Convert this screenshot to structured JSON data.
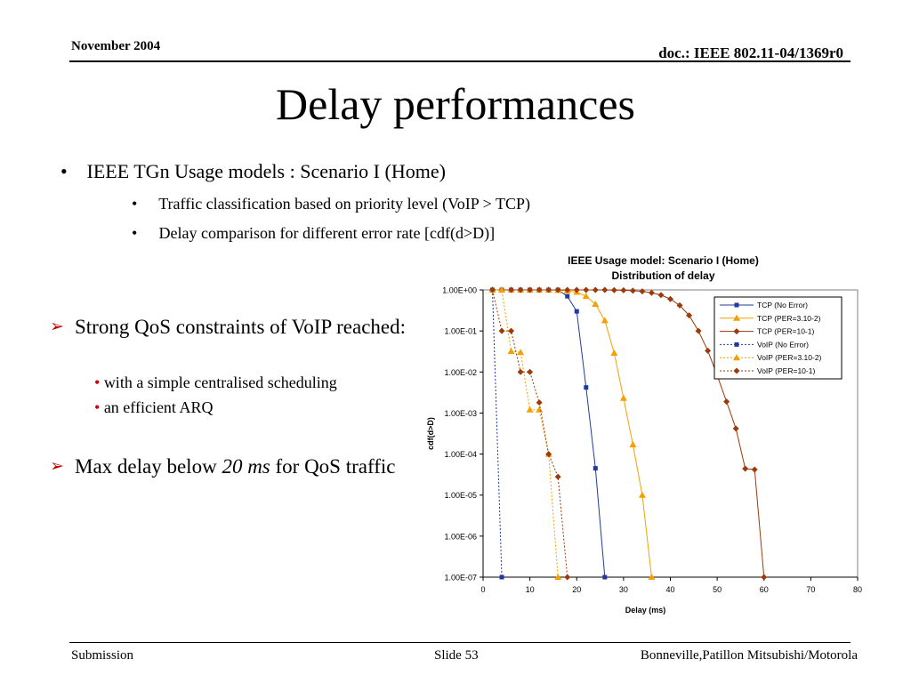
{
  "header": {
    "date": "November 2004",
    "doc": "doc.: IEEE 802.11-04/1369r0"
  },
  "title": "Delay performances",
  "bullets": {
    "main": "IEEE TGn Usage models : Scenario I (Home)",
    "subs": [
      "Traffic classification based on priority level (VoIP > TCP)",
      "Delay comparison for different error rate [cdf(d>D)]"
    ]
  },
  "points": [
    {
      "text": "Strong QoS constraints of VoIP reached:",
      "subs": [
        "with a simple centralised scheduling",
        "an efficient ARQ"
      ]
    },
    {
      "pre": "Max delay below ",
      "em": "20 ms",
      "post": " for QoS traffic"
    }
  ],
  "footer": {
    "left": "Submission",
    "slide": "Slide 53",
    "right": "Bonneville,Patillon Mitsubishi/Motorola"
  },
  "colors": {
    "navy": "#1f3aa0",
    "orange": "#f5a000",
    "brown": "#9c3a0a",
    "bullet_red": "#c00000"
  },
  "chart_data": {
    "type": "line",
    "title": "IEEE Usage model: Scenario I (Home)",
    "subtitle": "Distribution of delay",
    "xlabel": "Delay (ms)",
    "ylabel": "cdf(d>D)",
    "xlim": [
      0,
      80
    ],
    "ylim": [
      1e-07,
      1
    ],
    "yscale": "log",
    "xticks": [
      "0",
      "10",
      "20",
      "30",
      "40",
      "50",
      "60",
      "70",
      "80"
    ],
    "yticks": [
      "1.00E+00",
      "1.00E-01",
      "1.00E-02",
      "1.00E-03",
      "1.00E-04",
      "1.00E-05",
      "1.00E-06",
      "1.00E-07"
    ],
    "grid": false,
    "legend": "top-right",
    "series": [
      {
        "name": "TCP (No Error)",
        "color": "#1f3aa0",
        "marker": "square",
        "dash": false,
        "points": [
          [
            2,
            1
          ],
          [
            4,
            1
          ],
          [
            6,
            1
          ],
          [
            8,
            1
          ],
          [
            10,
            1
          ],
          [
            12,
            1
          ],
          [
            14,
            1
          ],
          [
            16,
            1
          ],
          [
            18,
            0.7
          ],
          [
            20,
            0.3
          ],
          [
            22,
            0.0042
          ],
          [
            24,
            4.5e-05
          ],
          [
            26,
            1e-07
          ]
        ]
      },
      {
        "name": "TCP (PER=3.10-2)",
        "color": "#f5a000",
        "marker": "triangle",
        "dash": false,
        "points": [
          [
            2,
            1
          ],
          [
            4,
            1
          ],
          [
            6,
            1
          ],
          [
            8,
            1
          ],
          [
            10,
            1
          ],
          [
            12,
            1
          ],
          [
            14,
            1
          ],
          [
            16,
            0.98
          ],
          [
            18,
            0.95
          ],
          [
            20,
            0.88
          ],
          [
            22,
            0.7
          ],
          [
            24,
            0.45
          ],
          [
            26,
            0.18
          ],
          [
            28,
            0.029
          ],
          [
            30,
            0.0023
          ],
          [
            32,
            0.00017
          ],
          [
            34,
            1e-05
          ],
          [
            36,
            1e-07
          ]
        ]
      },
      {
        "name": "TCP (PER=10-1)",
        "color": "#9c3a0a",
        "marker": "diamond",
        "dash": false,
        "points": [
          [
            2,
            1
          ],
          [
            4,
            1
          ],
          [
            6,
            1
          ],
          [
            8,
            1
          ],
          [
            10,
            1
          ],
          [
            12,
            1
          ],
          [
            14,
            1
          ],
          [
            16,
            1
          ],
          [
            18,
            1
          ],
          [
            20,
            1
          ],
          [
            22,
            1
          ],
          [
            24,
            1
          ],
          [
            26,
            1
          ],
          [
            28,
            0.99
          ],
          [
            30,
            0.98
          ],
          [
            32,
            0.96
          ],
          [
            34,
            0.92
          ],
          [
            36,
            0.85
          ],
          [
            38,
            0.75
          ],
          [
            40,
            0.6
          ],
          [
            42,
            0.42
          ],
          [
            44,
            0.24
          ],
          [
            46,
            0.1
          ],
          [
            48,
            0.033
          ],
          [
            50,
            0.0083
          ],
          [
            52,
            0.0019
          ],
          [
            54,
            0.00042
          ],
          [
            56,
            4.4e-05
          ],
          [
            58,
            4.2e-05
          ],
          [
            60,
            1e-07
          ]
        ]
      },
      {
        "name": "VoIP (No Error)",
        "color": "#1f3aa0",
        "marker": "square",
        "dash": true,
        "points": [
          [
            2,
            1
          ],
          [
            4,
            1e-07
          ]
        ]
      },
      {
        "name": "VoIP (PER=3.10-2)",
        "color": "#f5a000",
        "marker": "triangle",
        "dash": true,
        "points": [
          [
            2,
            1
          ],
          [
            4,
            1
          ],
          [
            6,
            0.032
          ],
          [
            8,
            0.03
          ],
          [
            10,
            0.0012
          ],
          [
            12,
            0.0012
          ],
          [
            14,
            0.0001
          ],
          [
            16,
            1e-07
          ]
        ]
      },
      {
        "name": "VoIP (PER=10-1)",
        "color": "#9c3a0a",
        "marker": "diamond",
        "dash": true,
        "points": [
          [
            2,
            1
          ],
          [
            4,
            0.1
          ],
          [
            6,
            0.1
          ],
          [
            8,
            0.01
          ],
          [
            10,
            0.01
          ],
          [
            12,
            0.0018
          ],
          [
            14,
            0.0001
          ],
          [
            16,
            2.8e-05
          ],
          [
            18,
            1e-07
          ]
        ]
      }
    ]
  }
}
